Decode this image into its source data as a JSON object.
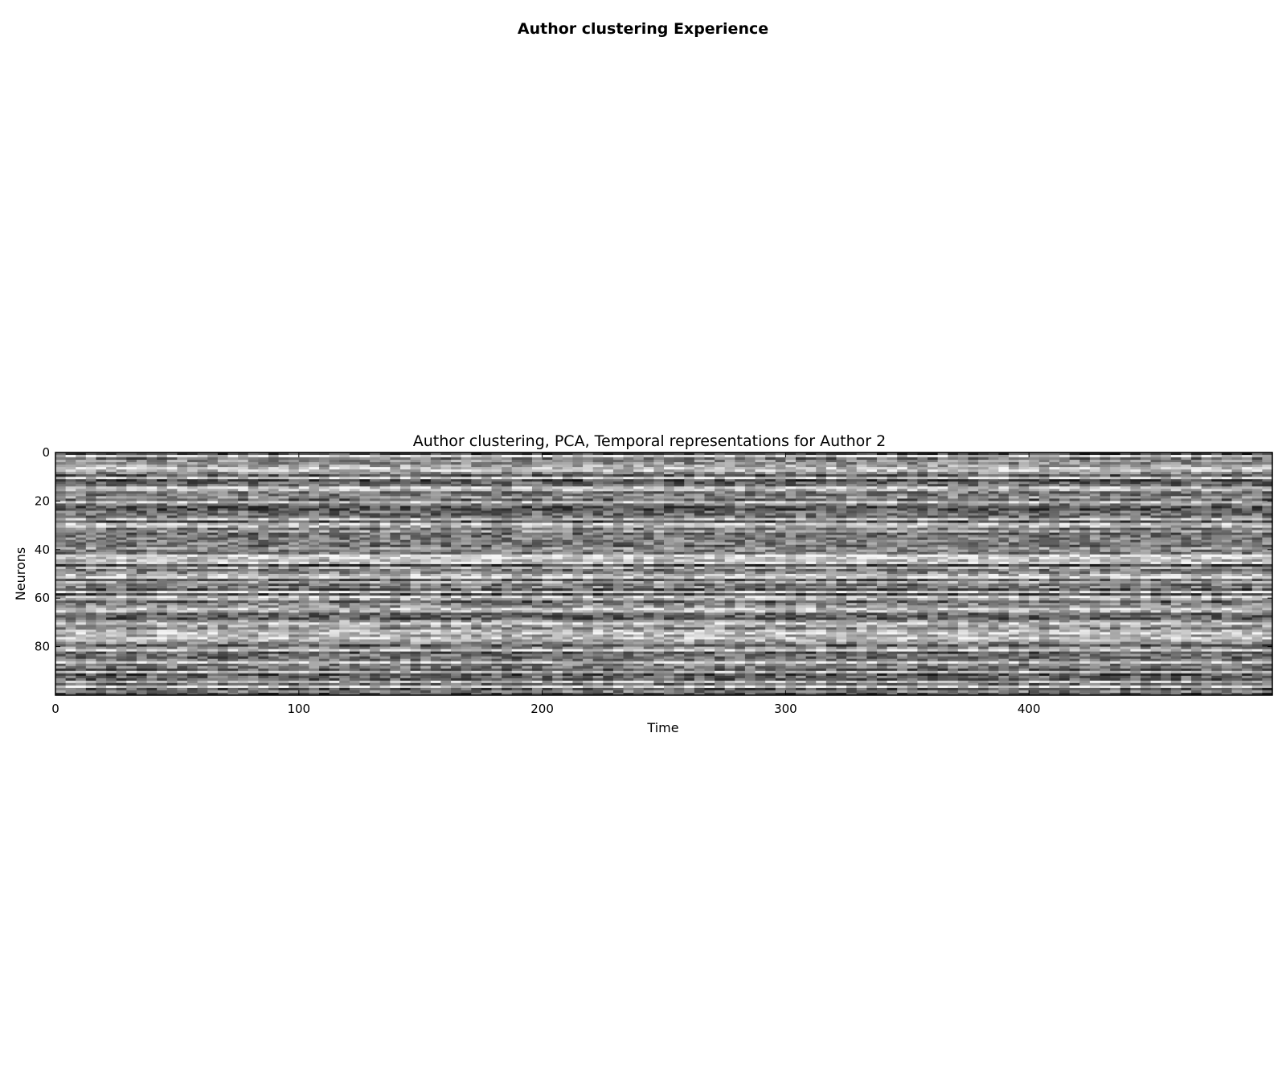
{
  "figure": {
    "suptitle": "Author clustering Experience"
  },
  "chart_data": {
    "type": "heatmap",
    "title": "Author clustering, PCA, Temporal representations for Author 2",
    "xlabel": "Time",
    "ylabel": "Neurons",
    "x_range": [
      0,
      500
    ],
    "y_range": [
      0,
      100
    ],
    "y_inverted": true,
    "x_ticks": [
      {
        "value": 0,
        "label": "0"
      },
      {
        "value": 100,
        "label": "100"
      },
      {
        "value": 200,
        "label": "200"
      },
      {
        "value": 300,
        "label": "300"
      },
      {
        "value": 400,
        "label": "400"
      }
    ],
    "y_ticks": [
      {
        "value": 0,
        "label": "0"
      },
      {
        "value": 20,
        "label": "20"
      },
      {
        "value": 40,
        "label": "40"
      },
      {
        "value": 60,
        "label": "60"
      },
      {
        "value": 80,
        "label": "80"
      }
    ],
    "colormap": "gray",
    "grid": false,
    "legend": "none"
  }
}
